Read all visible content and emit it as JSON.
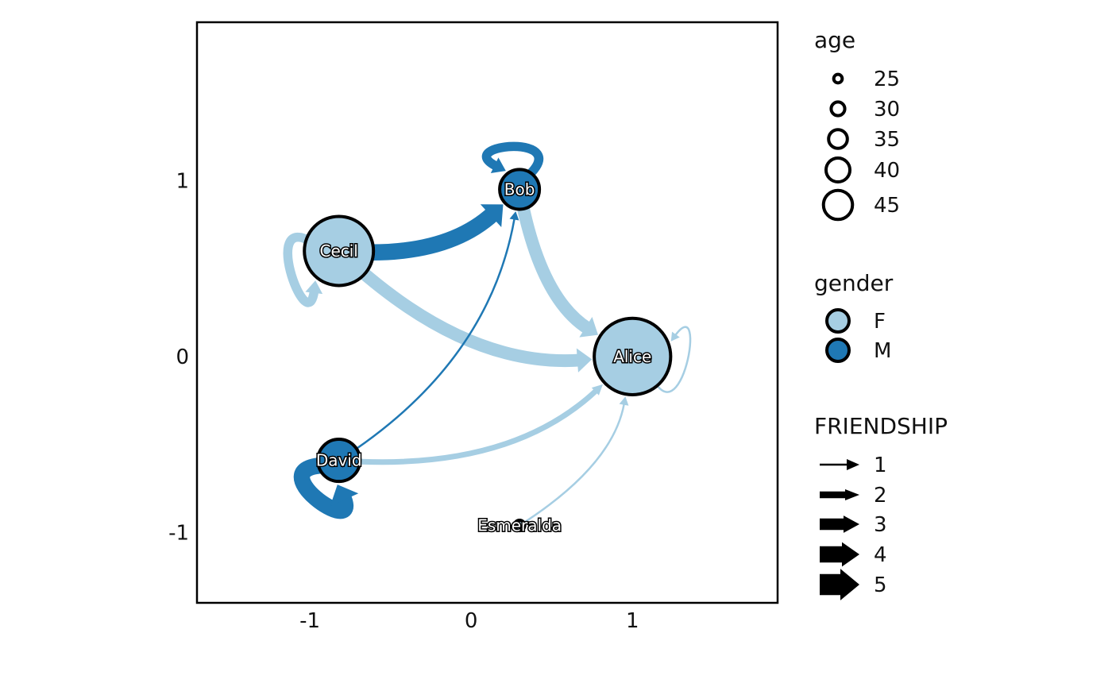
{
  "colors": {
    "F": "#a6cee3",
    "M": "#1f78b4",
    "outline": "#000000",
    "panel_border": "#000000"
  },
  "axes": {
    "xlim": [
      -1.7,
      1.9
    ],
    "ylim": [
      -1.4,
      1.9
    ],
    "xticks": [
      -1,
      0,
      1
    ],
    "yticks": [
      -1,
      0,
      1
    ],
    "xtick_labels": [
      "-1",
      "0",
      "1"
    ],
    "ytick_labels": [
      "-1",
      "0",
      "1"
    ],
    "grid": false
  },
  "chart_data": {
    "type": "network",
    "nodes": [
      {
        "id": "Alice",
        "label": "Alice",
        "x": 1.0,
        "y": 0.0,
        "age": 48,
        "gender": "F"
      },
      {
        "id": "Bob",
        "label": "Bob",
        "x": 0.3,
        "y": 0.95,
        "age": 33,
        "gender": "M"
      },
      {
        "id": "Cecil",
        "label": "Cecil",
        "x": -0.82,
        "y": 0.6,
        "age": 45,
        "gender": "F"
      },
      {
        "id": "David",
        "label": "David",
        "x": -0.82,
        "y": -0.59,
        "age": 34,
        "gender": "M"
      },
      {
        "id": "Esmeralda",
        "label": "Esmeralda",
        "x": 0.3,
        "y": -0.96,
        "age": 21,
        "gender": "F"
      }
    ],
    "edges": [
      {
        "from": "Cecil",
        "to": "Bob",
        "friendship": 5,
        "color_group": "M"
      },
      {
        "from": "Cecil",
        "to": "Alice",
        "friendship": 4,
        "color_group": "F"
      },
      {
        "from": "Bob",
        "to": "Alice",
        "friendship": 4,
        "color_group": "F"
      },
      {
        "from": "David",
        "to": "Alice",
        "friendship": 2,
        "color_group": "F"
      },
      {
        "from": "David",
        "to": "Bob",
        "friendship": 1,
        "color_group": "M"
      },
      {
        "from": "Esmeralda",
        "to": "Alice",
        "friendship": 1,
        "color_group": "F"
      },
      {
        "from": "Cecil",
        "to": "Cecil",
        "friendship": 3,
        "color_group": "F"
      },
      {
        "from": "Bob",
        "to": "Bob",
        "friendship": 3,
        "color_group": "M"
      },
      {
        "from": "David",
        "to": "David",
        "friendship": 5,
        "color_group": "M"
      },
      {
        "from": "Alice",
        "to": "Alice",
        "friendship": 1,
        "color_group": "F"
      }
    ],
    "legends": {
      "position": "right",
      "age": {
        "title": "age",
        "labels": [
          "25",
          "30",
          "35",
          "40",
          "45"
        ],
        "values": [
          25,
          30,
          35,
          40,
          45
        ]
      },
      "gender": {
        "title": "gender",
        "labels": [
          "F",
          "M"
        ],
        "values": [
          "F",
          "M"
        ]
      },
      "friendship": {
        "title": "FRIENDSHIP",
        "labels": [
          "1",
          "2",
          "3",
          "4",
          "5"
        ],
        "values": [
          1,
          2,
          3,
          4,
          5
        ]
      }
    }
  }
}
